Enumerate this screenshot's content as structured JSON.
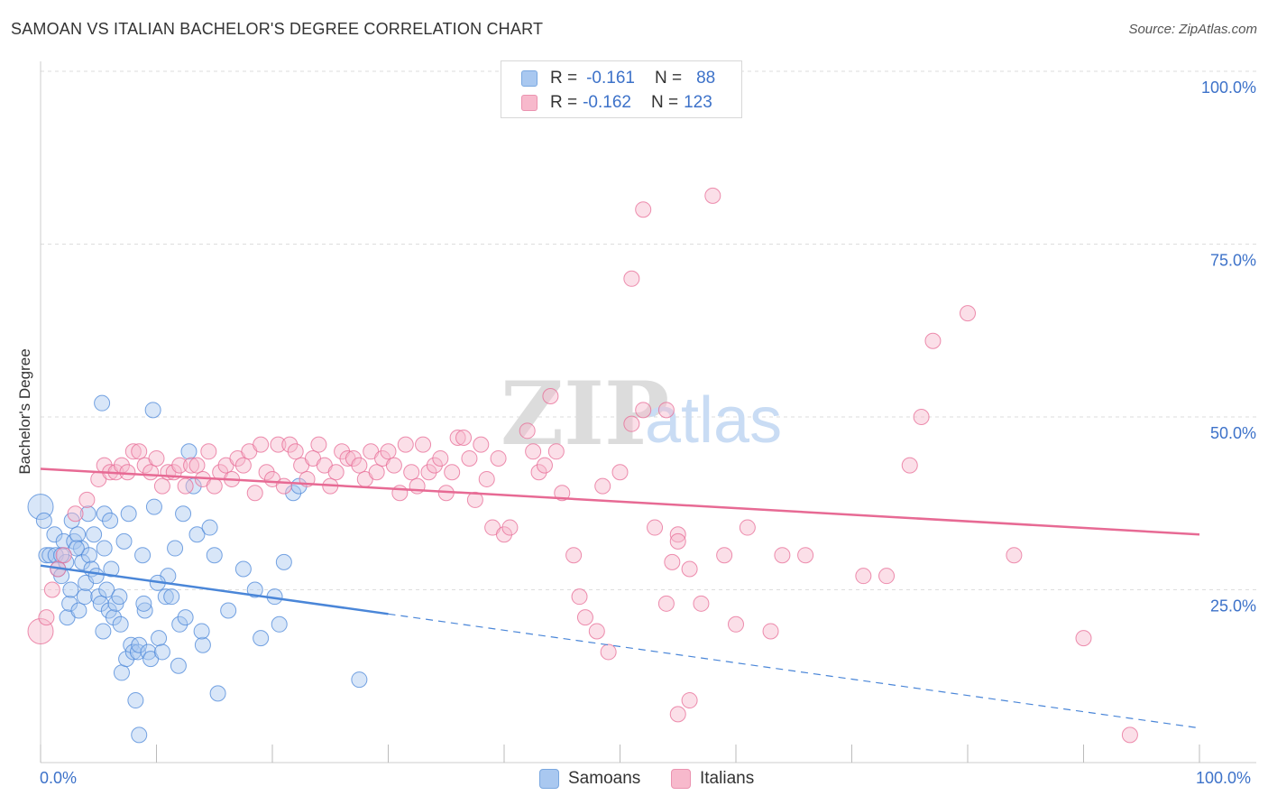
{
  "title": "SAMOAN VS ITALIAN BACHELOR'S DEGREE CORRELATION CHART",
  "source": "Source: ZipAtlas.com",
  "watermark": {
    "zip": "ZIP",
    "atlas": "atlas"
  },
  "legend_top": {
    "rows": [
      {
        "r_label": "R =",
        "r_value": "-0.161",
        "n_label": "N =",
        "n_value": "88",
        "color": "#a9c8f0"
      },
      {
        "r_label": "R =",
        "r_value": "-0.162",
        "n_label": "N =",
        "n_value": "123",
        "color": "#f7b9cc"
      }
    ]
  },
  "chart_data": {
    "type": "scatter",
    "ylabel": "Bachelor's Degree",
    "xlabel": "",
    "x_tick_labels": {
      "left": "0.0%",
      "right": "100.0%"
    },
    "y_tick_labels": [
      "25.0%",
      "50.0%",
      "75.0%",
      "100.0%"
    ],
    "y_ticks": [
      25,
      50,
      75,
      100
    ],
    "xlim": [
      0,
      100
    ],
    "ylim": [
      0,
      100
    ],
    "grid": true,
    "legend_position": "bottom",
    "series": [
      {
        "name": "Samoans",
        "color": "#4a86d8",
        "fill": "#a9c8f0",
        "trend": {
          "x0": 0,
          "y0": 28.5,
          "x1": 30,
          "y1": 21.5,
          "dash_x1": 100,
          "dash_y1": 5
        },
        "points": [
          [
            0,
            37
          ],
          [
            0.3,
            35
          ],
          [
            0.5,
            30
          ],
          [
            0.8,
            30
          ],
          [
            1.2,
            33
          ],
          [
            1.3,
            30
          ],
          [
            1.5,
            28
          ],
          [
            1.8,
            27
          ],
          [
            2,
            32
          ],
          [
            2.2,
            29
          ],
          [
            2.3,
            21
          ],
          [
            2.5,
            23
          ],
          [
            2.7,
            35
          ],
          [
            2.9,
            32
          ],
          [
            3.2,
            33
          ],
          [
            3.3,
            22
          ],
          [
            3.5,
            31
          ],
          [
            3.6,
            29
          ],
          [
            3.8,
            24
          ],
          [
            3.9,
            26
          ],
          [
            4.2,
            30
          ],
          [
            4.4,
            28
          ],
          [
            4.6,
            33
          ],
          [
            4.8,
            27
          ],
          [
            5,
            24
          ],
          [
            5.2,
            23
          ],
          [
            5.4,
            19
          ],
          [
            5.5,
            31
          ],
          [
            5.7,
            25
          ],
          [
            5.9,
            22
          ],
          [
            5.3,
            52
          ],
          [
            5.5,
            36
          ],
          [
            6,
            35
          ],
          [
            6.3,
            21
          ],
          [
            6.5,
            23
          ],
          [
            6.8,
            24
          ],
          [
            7,
            13
          ],
          [
            7.2,
            32
          ],
          [
            7.4,
            15
          ],
          [
            7.6,
            36
          ],
          [
            7.8,
            17
          ],
          [
            8,
            16
          ],
          [
            8.2,
            9
          ],
          [
            8.4,
            16
          ],
          [
            8.5,
            17
          ],
          [
            8.8,
            30
          ],
          [
            9,
            22
          ],
          [
            9.3,
            16
          ],
          [
            9.5,
            15
          ],
          [
            9.8,
            37
          ],
          [
            9.7,
            51
          ],
          [
            10.2,
            18
          ],
          [
            10.5,
            16
          ],
          [
            10.8,
            24
          ],
          [
            11,
            27
          ],
          [
            11.3,
            24
          ],
          [
            11.6,
            31
          ],
          [
            12,
            20
          ],
          [
            12.3,
            36
          ],
          [
            12.5,
            21
          ],
          [
            12.8,
            45
          ],
          [
            13.2,
            40
          ],
          [
            13.5,
            33
          ],
          [
            14,
            17
          ],
          [
            14.6,
            34
          ],
          [
            15,
            30
          ],
          [
            15.3,
            10
          ],
          [
            17.5,
            28
          ],
          [
            19,
            18
          ],
          [
            20.2,
            24
          ],
          [
            20.6,
            20
          ],
          [
            21,
            29
          ],
          [
            21.8,
            39
          ],
          [
            22.3,
            40
          ],
          [
            27.5,
            12
          ],
          [
            8.5,
            4
          ],
          [
            1.8,
            30
          ],
          [
            2.6,
            25
          ],
          [
            3.1,
            31
          ],
          [
            4.1,
            36
          ],
          [
            6.1,
            28
          ],
          [
            6.9,
            20
          ],
          [
            8.9,
            23
          ],
          [
            10.1,
            26
          ],
          [
            11.9,
            14
          ],
          [
            13.9,
            19
          ],
          [
            16.2,
            22
          ],
          [
            18.5,
            25
          ]
        ]
      },
      {
        "name": "Italians",
        "color": "#e76a94",
        "fill": "#f7b9cc",
        "trend": {
          "x0": 0,
          "y0": 42.5,
          "x1": 100,
          "y1": 33
        },
        "points": [
          [
            0,
            19
          ],
          [
            0.5,
            21
          ],
          [
            1,
            25
          ],
          [
            1.5,
            28
          ],
          [
            2,
            30
          ],
          [
            3,
            36
          ],
          [
            4,
            38
          ],
          [
            5,
            41
          ],
          [
            5.5,
            43
          ],
          [
            6,
            42
          ],
          [
            6.5,
            42
          ],
          [
            7,
            43
          ],
          [
            7.5,
            42
          ],
          [
            8,
            45
          ],
          [
            8.5,
            45
          ],
          [
            9,
            43
          ],
          [
            9.5,
            42
          ],
          [
            10,
            44
          ],
          [
            10.5,
            40
          ],
          [
            11,
            42
          ],
          [
            11.5,
            42
          ],
          [
            12,
            43
          ],
          [
            12.5,
            40
          ],
          [
            13,
            43
          ],
          [
            13.5,
            43
          ],
          [
            14,
            41
          ],
          [
            14.5,
            45
          ],
          [
            15,
            40
          ],
          [
            15.5,
            42
          ],
          [
            16,
            43
          ],
          [
            16.5,
            41
          ],
          [
            17,
            44
          ],
          [
            17.5,
            43
          ],
          [
            18,
            45
          ],
          [
            18.5,
            39
          ],
          [
            19,
            46
          ],
          [
            19.5,
            42
          ],
          [
            20,
            41
          ],
          [
            20.5,
            46
          ],
          [
            21,
            40
          ],
          [
            21.5,
            46
          ],
          [
            22,
            45
          ],
          [
            22.5,
            43
          ],
          [
            23,
            41
          ],
          [
            23.5,
            44
          ],
          [
            24,
            46
          ],
          [
            24.5,
            43
          ],
          [
            25,
            40
          ],
          [
            25.5,
            42
          ],
          [
            26,
            45
          ],
          [
            26.5,
            44
          ],
          [
            27,
            44
          ],
          [
            27.5,
            43
          ],
          [
            28,
            41
          ],
          [
            28.5,
            45
          ],
          [
            29,
            42
          ],
          [
            29.5,
            44
          ],
          [
            30,
            45
          ],
          [
            30.5,
            43
          ],
          [
            31,
            39
          ],
          [
            31.5,
            46
          ],
          [
            32,
            42
          ],
          [
            32.5,
            40
          ],
          [
            33,
            46
          ],
          [
            33.5,
            42
          ],
          [
            34,
            43
          ],
          [
            34.5,
            44
          ],
          [
            35,
            39
          ],
          [
            35.5,
            42
          ],
          [
            36,
            47
          ],
          [
            36.5,
            47
          ],
          [
            37,
            44
          ],
          [
            37.5,
            38
          ],
          [
            38,
            46
          ],
          [
            38.5,
            41
          ],
          [
            39,
            34
          ],
          [
            39.5,
            44
          ],
          [
            40,
            33
          ],
          [
            40.5,
            34
          ],
          [
            42,
            48
          ],
          [
            42.5,
            45
          ],
          [
            43,
            42
          ],
          [
            43.5,
            43
          ],
          [
            44,
            53
          ],
          [
            44.5,
            45
          ],
          [
            45,
            39
          ],
          [
            46,
            30
          ],
          [
            46.5,
            24
          ],
          [
            47,
            21
          ],
          [
            48,
            19
          ],
          [
            48.5,
            40
          ],
          [
            49,
            16
          ],
          [
            50,
            42
          ],
          [
            51,
            49
          ],
          [
            52,
            51
          ],
          [
            53,
            34
          ],
          [
            54,
            23
          ],
          [
            54.5,
            29
          ],
          [
            55,
            33
          ],
          [
            51,
            70
          ],
          [
            52,
            80
          ],
          [
            54,
            51
          ],
          [
            55,
            32
          ],
          [
            56,
            28
          ],
          [
            57,
            23
          ],
          [
            58,
            82
          ],
          [
            59,
            30
          ],
          [
            60,
            20
          ],
          [
            61,
            34
          ],
          [
            63,
            19
          ],
          [
            64,
            30
          ],
          [
            66,
            30
          ],
          [
            71,
            27
          ],
          [
            73,
            27
          ],
          [
            75,
            43
          ],
          [
            76,
            50
          ],
          [
            77,
            61
          ],
          [
            80,
            65
          ],
          [
            84,
            30
          ],
          [
            90,
            18
          ],
          [
            94,
            4
          ],
          [
            55,
            7
          ],
          [
            56,
            9
          ]
        ]
      }
    ]
  }
}
